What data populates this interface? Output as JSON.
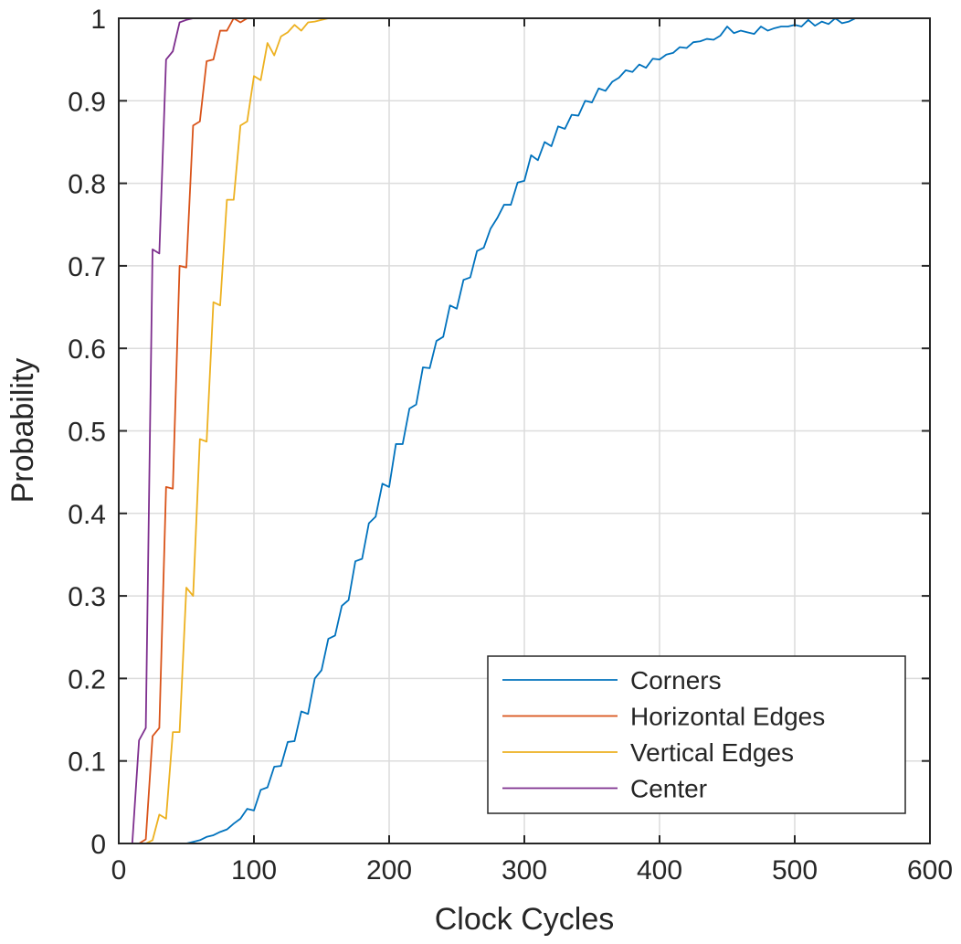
{
  "chart_data": {
    "type": "line",
    "xlabel": "Clock Cycles",
    "ylabel": "Probability",
    "xlim": [
      0,
      600
    ],
    "ylim": [
      0,
      1
    ],
    "xticks": [
      0,
      100,
      200,
      300,
      400,
      500,
      600
    ],
    "xtick_labels": [
      "0",
      "100",
      "200",
      "300",
      "400",
      "500",
      "600"
    ],
    "yticks": [
      0,
      0.1,
      0.2,
      0.3,
      0.4,
      0.5,
      0.6,
      0.7,
      0.8,
      0.9,
      1
    ],
    "ytick_labels": [
      "0",
      "0.1",
      "0.2",
      "0.3",
      "0.4",
      "0.5",
      "0.6",
      "0.7",
      "0.8",
      "0.9",
      "1"
    ],
    "grid": true,
    "legend_position": "bottom-right",
    "series": [
      {
        "name": "Corners",
        "color": "#0072BD",
        "x": [
          0,
          50,
          55,
          60,
          65,
          70,
          75,
          80,
          85,
          90,
          95,
          100,
          105,
          110,
          115,
          120,
          125,
          130,
          135,
          140,
          145,
          150,
          155,
          160,
          165,
          170,
          175,
          180,
          185,
          190,
          195,
          200,
          205,
          210,
          215,
          220,
          225,
          230,
          235,
          240,
          245,
          250,
          255,
          260,
          265,
          270,
          275,
          280,
          285,
          290,
          295,
          300,
          305,
          310,
          315,
          320,
          325,
          330,
          335,
          340,
          345,
          350,
          355,
          360,
          365,
          370,
          375,
          380,
          385,
          390,
          395,
          400,
          405,
          410,
          415,
          420,
          425,
          430,
          435,
          440,
          445,
          450,
          455,
          460,
          465,
          470,
          475,
          480,
          485,
          490,
          495,
          500,
          505,
          510,
          515,
          520,
          525,
          530,
          535,
          540,
          545,
          550
        ],
        "y": [
          0,
          0,
          0.002,
          0.004,
          0.008,
          0.01,
          0.014,
          0.017,
          0.024,
          0.03,
          0.042,
          0.04,
          0.065,
          0.068,
          0.093,
          0.094,
          0.123,
          0.124,
          0.16,
          0.157,
          0.2,
          0.21,
          0.248,
          0.252,
          0.288,
          0.295,
          0.342,
          0.345,
          0.388,
          0.396,
          0.436,
          0.432,
          0.484,
          0.484,
          0.527,
          0.532,
          0.577,
          0.576,
          0.609,
          0.614,
          0.652,
          0.648,
          0.683,
          0.686,
          0.718,
          0.722,
          0.745,
          0.758,
          0.774,
          0.774,
          0.801,
          0.803,
          0.834,
          0.828,
          0.85,
          0.845,
          0.869,
          0.866,
          0.883,
          0.882,
          0.9,
          0.898,
          0.915,
          0.912,
          0.923,
          0.928,
          0.937,
          0.935,
          0.944,
          0.94,
          0.951,
          0.95,
          0.956,
          0.958,
          0.965,
          0.964,
          0.971,
          0.972,
          0.975,
          0.974,
          0.979,
          0.99,
          0.982,
          0.985,
          0.983,
          0.981,
          0.99,
          0.985,
          0.988,
          0.99,
          0.99,
          0.992,
          0.99,
          0.998,
          0.991,
          0.996,
          0.993,
          1.0,
          0.994,
          0.996,
          1.0,
          1.0
        ]
      },
      {
        "name": "Horizontal Edges",
        "color": "#D95319",
        "x": [
          0,
          15,
          20,
          25,
          30,
          35,
          40,
          45,
          50,
          55,
          60,
          65,
          70,
          75,
          80,
          85,
          90,
          95,
          550
        ],
        "y": [
          0,
          0,
          0.005,
          0.13,
          0.14,
          0.432,
          0.43,
          0.7,
          0.698,
          0.87,
          0.875,
          0.948,
          0.95,
          0.985,
          0.985,
          1.0,
          0.995,
          1.0,
          1.0
        ]
      },
      {
        "name": "Vertical Edges",
        "color": "#EDB120",
        "x": [
          0,
          15,
          20,
          25,
          30,
          35,
          40,
          45,
          50,
          55,
          60,
          65,
          70,
          75,
          80,
          85,
          90,
          95,
          100,
          105,
          110,
          115,
          120,
          125,
          130,
          135,
          140,
          145,
          150,
          155,
          550
        ],
        "y": [
          0,
          0,
          0,
          0.004,
          0.035,
          0.03,
          0.135,
          0.135,
          0.31,
          0.3,
          0.49,
          0.487,
          0.656,
          0.652,
          0.78,
          0.78,
          0.87,
          0.875,
          0.93,
          0.925,
          0.97,
          0.955,
          0.978,
          0.983,
          0.992,
          0.985,
          0.995,
          0.996,
          0.998,
          1.0,
          1.0
        ]
      },
      {
        "name": "Center",
        "color": "#7E2F8E",
        "x": [
          0,
          10,
          15,
          20,
          25,
          30,
          35,
          40,
          45,
          50,
          55,
          550
        ],
        "y": [
          0,
          0,
          0.125,
          0.14,
          0.72,
          0.715,
          0.95,
          0.96,
          0.995,
          0.998,
          1.0,
          1.0
        ]
      }
    ]
  }
}
